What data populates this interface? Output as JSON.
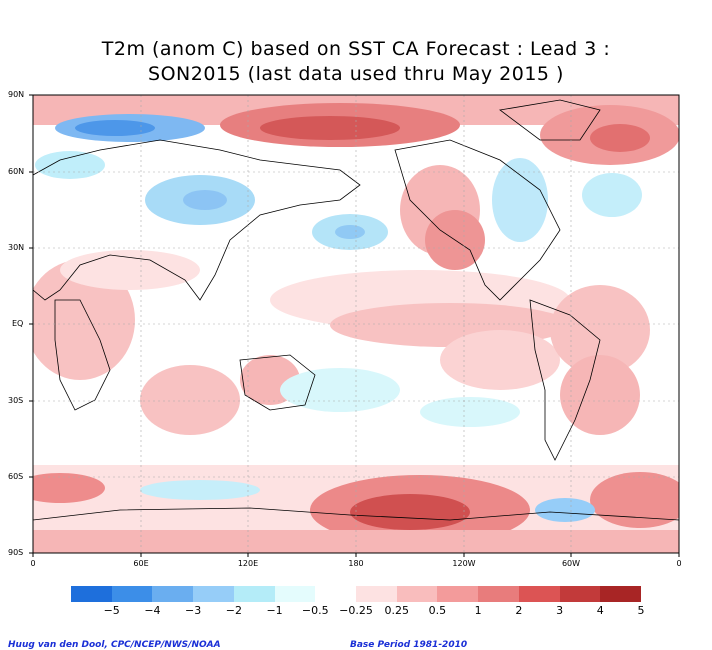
{
  "title_line1": "T2m (anom C) based on SST CA Forecast : Lead 3 :",
  "title_line2": "SON2015 (last data used thru May 2015 )",
  "lat_labels": [
    "90N",
    "60N",
    "30N",
    "EQ",
    "30S",
    "60S",
    "90S"
  ],
  "lon_labels": [
    "0",
    "60E",
    "120E",
    "180",
    "120W",
    "60W",
    "0"
  ],
  "colorbar": {
    "colors": [
      "#1e6fdc",
      "#3c8ee8",
      "#6aaef0",
      "#96cdf8",
      "#b4ecf8",
      "#e4fcfd",
      "#ffffff",
      "#fde2e2",
      "#f9bdbd",
      "#f39b9b",
      "#e87c7c",
      "#dc5454",
      "#c23a3a",
      "#a82525"
    ],
    "labels": [
      "−5",
      "−4",
      "−3",
      "−2",
      "−1",
      "−0.5",
      "−0.25",
      "0.25",
      "0.5",
      "1",
      "2",
      "3",
      "4",
      "5"
    ]
  },
  "credit_left": "Huug van den Dool, CPC/NCEP/NWS/NOAA",
  "credit_right": "Base Period 1981-2010"
}
